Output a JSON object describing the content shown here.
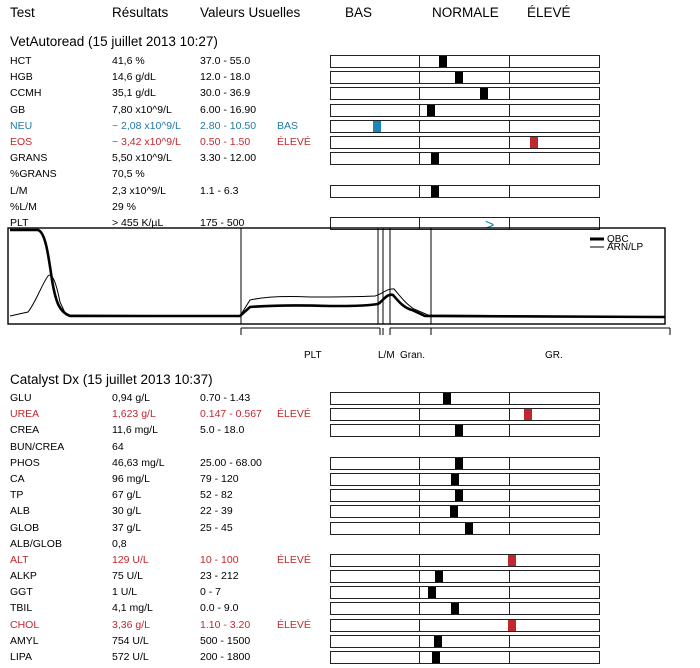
{
  "header": {
    "test": "Test",
    "results": "Résultats",
    "ref": "Valeurs Usuelles",
    "bas": "BAS",
    "normale": "NORMALE",
    "eleve": "ÉLEVÉ"
  },
  "vet": {
    "title": "VetAutoread (15 juillet 2013 10:27)",
    "rows": [
      {
        "name": "HCT",
        "result": "41,6 %",
        "ref": "37.0 - 55.0",
        "flag": "",
        "status": "normal",
        "bar": true,
        "marker": 0.415
      },
      {
        "name": "HGB",
        "result": "14,6 g/dL",
        "ref": "12.0 - 18.0",
        "flag": "",
        "status": "normal",
        "bar": true,
        "marker": 0.475
      },
      {
        "name": "CCMH",
        "result": "35,1 g/dL",
        "ref": "30.0 - 36.9",
        "flag": "",
        "status": "normal",
        "bar": true,
        "marker": 0.565
      },
      {
        "name": "GB",
        "result": "7,80 x10^9/L",
        "ref": "6.00 - 16.90",
        "flag": "",
        "status": "normal",
        "bar": true,
        "marker": 0.37
      },
      {
        "name": "NEU",
        "result": "~ 2,08 x10^9/L",
        "ref": "2.80 - 10.50",
        "flag": "BAS",
        "status": "low",
        "bar": true,
        "marker": 0.17
      },
      {
        "name": "EOS",
        "result": "~ 3,42 x10^9/L",
        "ref": "0.50 - 1.50",
        "flag": "ÉLEVÉ",
        "status": "high",
        "bar": true,
        "marker": 0.75
      },
      {
        "name": "GRANS",
        "result": "5,50 x10^9/L",
        "ref": "3.30 - 12.00",
        "flag": "",
        "status": "normal",
        "bar": true,
        "marker": 0.385
      },
      {
        "name": "%GRANS",
        "result": "70,5 %",
        "ref": "",
        "flag": "",
        "status": "normal",
        "bar": false
      },
      {
        "name": "L/M",
        "result": "2,3 x10^9/L",
        "ref": "1.1 - 6.3",
        "flag": "",
        "status": "normal",
        "bar": true,
        "marker": 0.385
      },
      {
        "name": "%L/M",
        "result": "29 %",
        "ref": "",
        "flag": "",
        "status": "normal",
        "bar": false
      },
      {
        "name": "PLT",
        "result": "> 455 K/µL",
        "ref": "175 - 500",
        "flag": "",
        "status": "normal",
        "bar": true,
        "arrow": ">",
        "marker": 0.6
      }
    ]
  },
  "graph": {
    "legend1": "QBC",
    "legend2": "ARN/LP",
    "labels": [
      "PLT",
      "L/M",
      "Gran.",
      "GR."
    ]
  },
  "cat": {
    "title": "Catalyst Dx (15 juillet 2013 10:37)",
    "rows": [
      {
        "name": "GLU",
        "result": "0,94 g/L",
        "ref": "0.70 - 1.43",
        "flag": "",
        "status": "normal",
        "bar": true,
        "marker": 0.43
      },
      {
        "name": "UREA",
        "result": "1,623 g/L",
        "ref": "0.147 - 0.567",
        "flag": "ÉLEVÉ",
        "status": "high",
        "bar": true,
        "marker": 0.73
      },
      {
        "name": "CREA",
        "result": "11,6 mg/L",
        "ref": "5.0 - 18.0",
        "flag": "",
        "status": "normal",
        "bar": true,
        "marker": 0.475
      },
      {
        "name": "BUN/CREA",
        "result": "64",
        "ref": "",
        "flag": "",
        "status": "normal",
        "bar": false
      },
      {
        "name": "PHOS",
        "result": "46,63 mg/L",
        "ref": "25.00 - 68.00",
        "flag": "",
        "status": "normal",
        "bar": true,
        "marker": 0.475
      },
      {
        "name": "CA",
        "result": "96 mg/L",
        "ref": "79 - 120",
        "flag": "",
        "status": "normal",
        "bar": true,
        "marker": 0.46
      },
      {
        "name": "TP",
        "result": "67 g/L",
        "ref": "52 - 82",
        "flag": "",
        "status": "normal",
        "bar": true,
        "marker": 0.475
      },
      {
        "name": "ALB",
        "result": "30 g/L",
        "ref": "22 - 39",
        "flag": "",
        "status": "normal",
        "bar": true,
        "marker": 0.455
      },
      {
        "name": "GLOB",
        "result": "37 g/L",
        "ref": "25 - 45",
        "flag": "",
        "status": "normal",
        "bar": true,
        "marker": 0.51
      },
      {
        "name": "ALB/GLOB",
        "result": "0,8",
        "ref": "",
        "flag": "",
        "status": "normal",
        "bar": false
      },
      {
        "name": "ALT",
        "result": "129 U/L",
        "ref": "10 - 100",
        "flag": "ÉLEVÉ",
        "status": "high",
        "bar": true,
        "marker": 0.67
      },
      {
        "name": "ALKP",
        "result": "75 U/L",
        "ref": "23 - 212",
        "flag": "",
        "status": "normal",
        "bar": true,
        "marker": 0.4
      },
      {
        "name": "GGT",
        "result": "1 U/L",
        "ref": "0 - 7",
        "flag": "",
        "status": "normal",
        "bar": true,
        "marker": 0.375
      },
      {
        "name": "TBIL",
        "result": "4,1 mg/L",
        "ref": "0.0 - 9.0",
        "flag": "",
        "status": "normal",
        "bar": true,
        "marker": 0.46
      },
      {
        "name": "CHOL",
        "result": "3,36 g/L",
        "ref": "1.10 - 3.20",
        "flag": "ÉLEVÉ",
        "status": "high",
        "bar": true,
        "marker": 0.67
      },
      {
        "name": "AMYL",
        "result": "754 U/L",
        "ref": "500 - 1500",
        "flag": "",
        "status": "normal",
        "bar": true,
        "marker": 0.395
      },
      {
        "name": "LIPA",
        "result": "572 U/L",
        "ref": "200 - 1800",
        "flag": "",
        "status": "normal",
        "bar": true,
        "marker": 0.39
      }
    ]
  }
}
